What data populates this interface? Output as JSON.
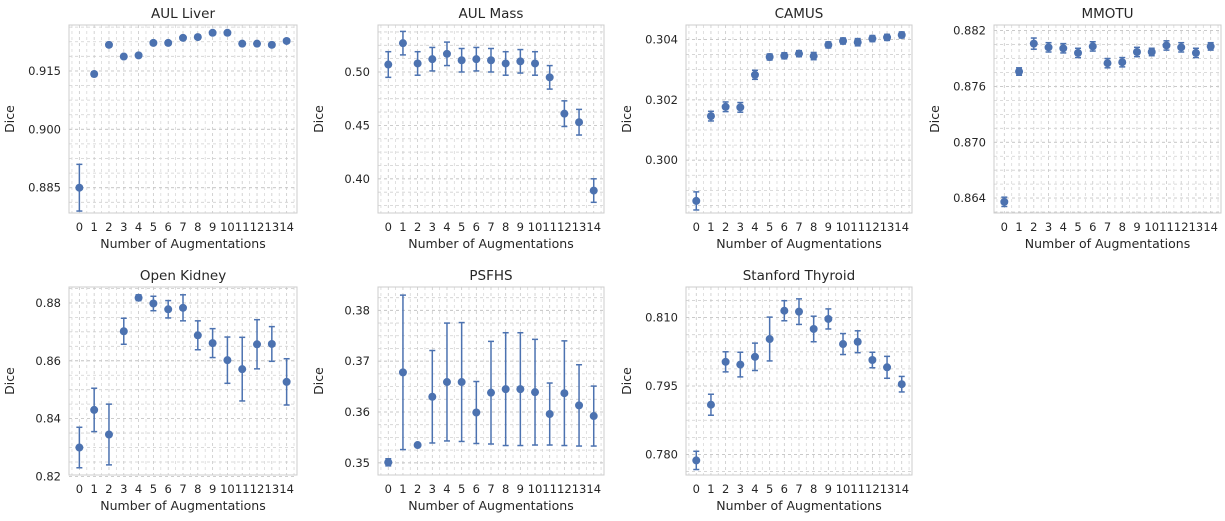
{
  "figure": {
    "xlabel": "Number of Augmentations",
    "ylabel": "Dice",
    "marker_color": "#4c72b0",
    "grid": true
  },
  "chart_data": [
    {
      "type": "scatter",
      "title": "AUL Liver",
      "xlabel": "Number of Augmentations",
      "ylabel": "Dice",
      "x": [
        0,
        1,
        2,
        3,
        4,
        5,
        6,
        7,
        8,
        9,
        10,
        11,
        12,
        13,
        14
      ],
      "x_tick_labels": [
        "0",
        "1",
        "2",
        "3",
        "4",
        "5",
        "6",
        "7",
        "8",
        "9",
        "10",
        "11",
        "12",
        "13",
        "14"
      ],
      "y": [
        0.885,
        0.9142,
        0.9217,
        0.9187,
        0.919,
        0.9222,
        0.9222,
        0.9235,
        0.9237,
        0.9248,
        0.9248,
        0.922,
        0.922,
        0.9217,
        0.9227
      ],
      "err": [
        0.006,
        0.0006,
        0.0005,
        0.0005,
        0.0005,
        0.0005,
        0.0005,
        0.0005,
        0.0005,
        0.0005,
        0.0005,
        0.0005,
        0.0005,
        0.0005,
        0.0005
      ],
      "ylim": [
        0.8785,
        0.9268
      ],
      "yticks": [
        0.885,
        0.9,
        0.915
      ],
      "ytick_labels": [
        "0.885",
        "0.900",
        "0.915"
      ]
    },
    {
      "type": "scatter",
      "title": "AUL Mass",
      "xlabel": "Number of Augmentations",
      "ylabel": "Dice",
      "x": [
        0,
        1,
        2,
        3,
        4,
        5,
        6,
        7,
        8,
        9,
        10,
        11,
        12,
        13,
        14
      ],
      "x_tick_labels": [
        "0",
        "1",
        "2",
        "3",
        "4",
        "5",
        "6",
        "7",
        "8",
        "9",
        "10",
        "11",
        "12",
        "13",
        "14"
      ],
      "y": [
        0.507,
        0.527,
        0.508,
        0.512,
        0.517,
        0.511,
        0.512,
        0.511,
        0.508,
        0.51,
        0.508,
        0.495,
        0.461,
        0.453,
        0.389
      ],
      "err": [
        0.012,
        0.011,
        0.011,
        0.011,
        0.011,
        0.011,
        0.011,
        0.011,
        0.011,
        0.011,
        0.011,
        0.011,
        0.012,
        0.012,
        0.011
      ],
      "ylim": [
        0.368,
        0.544
      ],
      "yticks": [
        0.4,
        0.45,
        0.5
      ],
      "ytick_labels": [
        "0.40",
        "0.45",
        "0.50"
      ]
    },
    {
      "type": "scatter",
      "title": "CAMUS",
      "xlabel": "Number of Augmentations",
      "ylabel": "Dice",
      "x": [
        0,
        1,
        2,
        3,
        4,
        5,
        6,
        7,
        8,
        9,
        10,
        11,
        12,
        13,
        14
      ],
      "x_tick_labels": [
        "0",
        "1",
        "2",
        "3",
        "4",
        "5",
        "6",
        "7",
        "8",
        "9",
        "10",
        "11",
        "12",
        "13",
        "14"
      ],
      "y": [
        0.29865,
        0.30146,
        0.30177,
        0.30175,
        0.30283,
        0.30342,
        0.30346,
        0.30353,
        0.30345,
        0.30382,
        0.30395,
        0.30391,
        0.30403,
        0.30407,
        0.30415
      ],
      "err": [
        0.0003,
        0.00016,
        0.00016,
        0.00016,
        0.00015,
        0.0001,
        0.0001,
        0.0001,
        0.00012,
        0.0001,
        0.0001,
        0.00012,
        0.0001,
        0.0001,
        0.0001
      ],
      "ylim": [
        0.29825,
        0.30448
      ],
      "yticks": [
        0.3,
        0.302,
        0.304
      ],
      "ytick_labels": [
        "0.300",
        "0.302",
        "0.304"
      ]
    },
    {
      "type": "scatter",
      "title": "MMOTU",
      "xlabel": "Number of Augmentations",
      "ylabel": "Dice",
      "x": [
        0,
        1,
        2,
        3,
        4,
        5,
        6,
        7,
        8,
        9,
        10,
        11,
        12,
        13,
        14
      ],
      "x_tick_labels": [
        "0",
        "1",
        "2",
        "3",
        "4",
        "5",
        "6",
        "7",
        "8",
        "9",
        "10",
        "11",
        "12",
        "13",
        "14"
      ],
      "y": [
        0.8636,
        0.8776,
        0.8806,
        0.8802,
        0.8801,
        0.8796,
        0.8803,
        0.8785,
        0.8786,
        0.8797,
        0.8797,
        0.8804,
        0.8802,
        0.8796,
        0.8803
      ],
      "err": [
        0.0005,
        0.0004,
        0.0006,
        0.0005,
        0.0005,
        0.0005,
        0.0005,
        0.0005,
        0.0005,
        0.0005,
        0.0004,
        0.0005,
        0.0005,
        0.0005,
        0.0004
      ],
      "ylim": [
        0.8624,
        0.8826
      ],
      "yticks": [
        0.864,
        0.87,
        0.876,
        0.882
      ],
      "ytick_labels": [
        "0.864",
        "0.870",
        "0.876",
        "0.882"
      ]
    },
    {
      "type": "scatter",
      "title": "Open Kidney",
      "xlabel": "Number of Augmentations",
      "ylabel": "Dice",
      "x": [
        0,
        1,
        2,
        3,
        4,
        5,
        6,
        7,
        8,
        9,
        10,
        11,
        12,
        13,
        14
      ],
      "x_tick_labels": [
        "0",
        "1",
        "2",
        "3",
        "4",
        "5",
        "6",
        "7",
        "8",
        "9",
        "10",
        "11",
        "12",
        "13",
        "14"
      ],
      "y": [
        0.83,
        0.843,
        0.8345,
        0.8702,
        0.8818,
        0.8798,
        0.8778,
        0.8783,
        0.8688,
        0.8661,
        0.8602,
        0.8571,
        0.8657,
        0.8658,
        0.8527
      ],
      "err": [
        0.007,
        0.0075,
        0.0105,
        0.0045,
        0.001,
        0.0025,
        0.003,
        0.0045,
        0.005,
        0.005,
        0.008,
        0.011,
        0.0085,
        0.006,
        0.008
      ],
      "ylim": [
        0.8205,
        0.8855
      ],
      "yticks": [
        0.82,
        0.84,
        0.86,
        0.88
      ],
      "ytick_labels": [
        "0.82",
        "0.84",
        "0.86",
        "0.88"
      ]
    },
    {
      "type": "scatter",
      "title": "PSFHS",
      "xlabel": "Number of Augmentations",
      "ylabel": "Dice",
      "x": [
        0,
        1,
        2,
        3,
        4,
        5,
        6,
        7,
        8,
        9,
        10,
        11,
        12,
        13,
        14
      ],
      "x_tick_labels": [
        "0",
        "1",
        "2",
        "3",
        "4",
        "5",
        "6",
        "7",
        "8",
        "9",
        "10",
        "11",
        "12",
        "13",
        "14"
      ],
      "y": [
        0.3501,
        0.3678,
        0.3535,
        0.363,
        0.3659,
        0.3659,
        0.3599,
        0.3638,
        0.3645,
        0.3645,
        0.3639,
        0.3596,
        0.3637,
        0.3613,
        0.3592
      ],
      "err": [
        0.0007,
        0.0152,
        0.0002,
        0.0091,
        0.0116,
        0.0117,
        0.0061,
        0.0101,
        0.0111,
        0.0111,
        0.0104,
        0.0061,
        0.0103,
        0.008,
        0.0059
      ],
      "ylim": [
        0.3476,
        0.3846
      ],
      "yticks": [
        0.35,
        0.36,
        0.37,
        0.38
      ],
      "ytick_labels": [
        "0.35",
        "0.36",
        "0.37",
        "0.38"
      ]
    },
    {
      "type": "scatter",
      "title": "Stanford Thyroid",
      "xlabel": "Number of Augmentations",
      "ylabel": "Dice",
      "x": [
        0,
        1,
        2,
        3,
        4,
        5,
        6,
        7,
        8,
        9,
        10,
        11,
        12,
        13,
        14
      ],
      "x_tick_labels": [
        "0",
        "1",
        "2",
        "3",
        "4",
        "5",
        "6",
        "7",
        "8",
        "9",
        "10",
        "11",
        "12",
        "13",
        "14"
      ],
      "y": [
        0.7787,
        0.7909,
        0.8003,
        0.7997,
        0.8014,
        0.8053,
        0.8115,
        0.8113,
        0.8075,
        0.8097,
        0.8042,
        0.8047,
        0.8007,
        0.7991,
        0.7954
      ],
      "err": [
        0.002,
        0.0023,
        0.0022,
        0.0027,
        0.003,
        0.0048,
        0.0022,
        0.0028,
        0.0028,
        0.0022,
        0.0023,
        0.0024,
        0.0017,
        0.0024,
        0.0017
      ],
      "ylim": [
        0.7755,
        0.8167
      ],
      "yticks": [
        0.78,
        0.795,
        0.81
      ],
      "ytick_labels": [
        "0.780",
        "0.795",
        "0.810"
      ]
    }
  ]
}
